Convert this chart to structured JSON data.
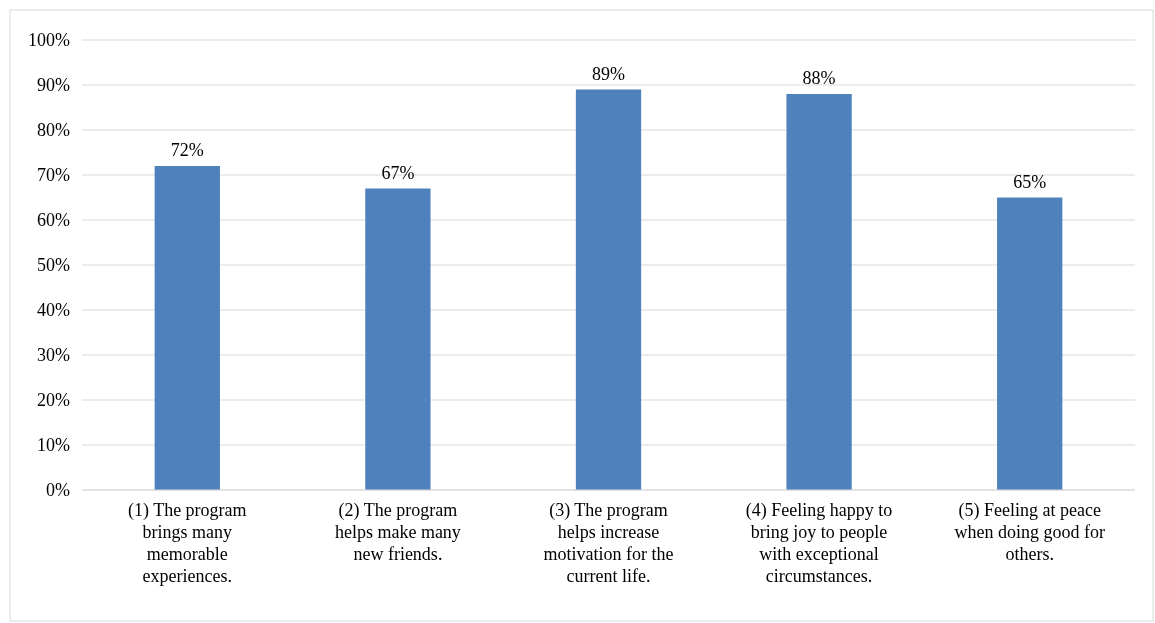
{
  "chart_data": {
    "type": "bar",
    "categories": [
      "(1) The program brings many memorable experiences.",
      "(2) The program helps make many new friends.",
      "(3) The program helps increase motivation for the current life.",
      "(4) Feeling happy to bring joy to people with exceptional circumstances.",
      "(5) Feeling at peace when doing good for others."
    ],
    "values": [
      72,
      67,
      89,
      88,
      65
    ],
    "value_labels": [
      "72%",
      "67%",
      "89%",
      "88%",
      "65%"
    ],
    "color": "#4f81bd",
    "ylim": [
      0,
      100
    ],
    "yticks": [
      {
        "value": 0,
        "label": "0%"
      },
      {
        "value": 10,
        "label": "10%"
      },
      {
        "value": 20,
        "label": "20%"
      },
      {
        "value": 30,
        "label": "30%"
      },
      {
        "value": 40,
        "label": "40%"
      },
      {
        "value": 50,
        "label": "50%"
      },
      {
        "value": 60,
        "label": "60%"
      },
      {
        "value": 70,
        "label": "70%"
      },
      {
        "value": 80,
        "label": "80%"
      },
      {
        "value": 90,
        "label": "90%"
      },
      {
        "value": 100,
        "label": "100%"
      }
    ],
    "grid": "y"
  }
}
